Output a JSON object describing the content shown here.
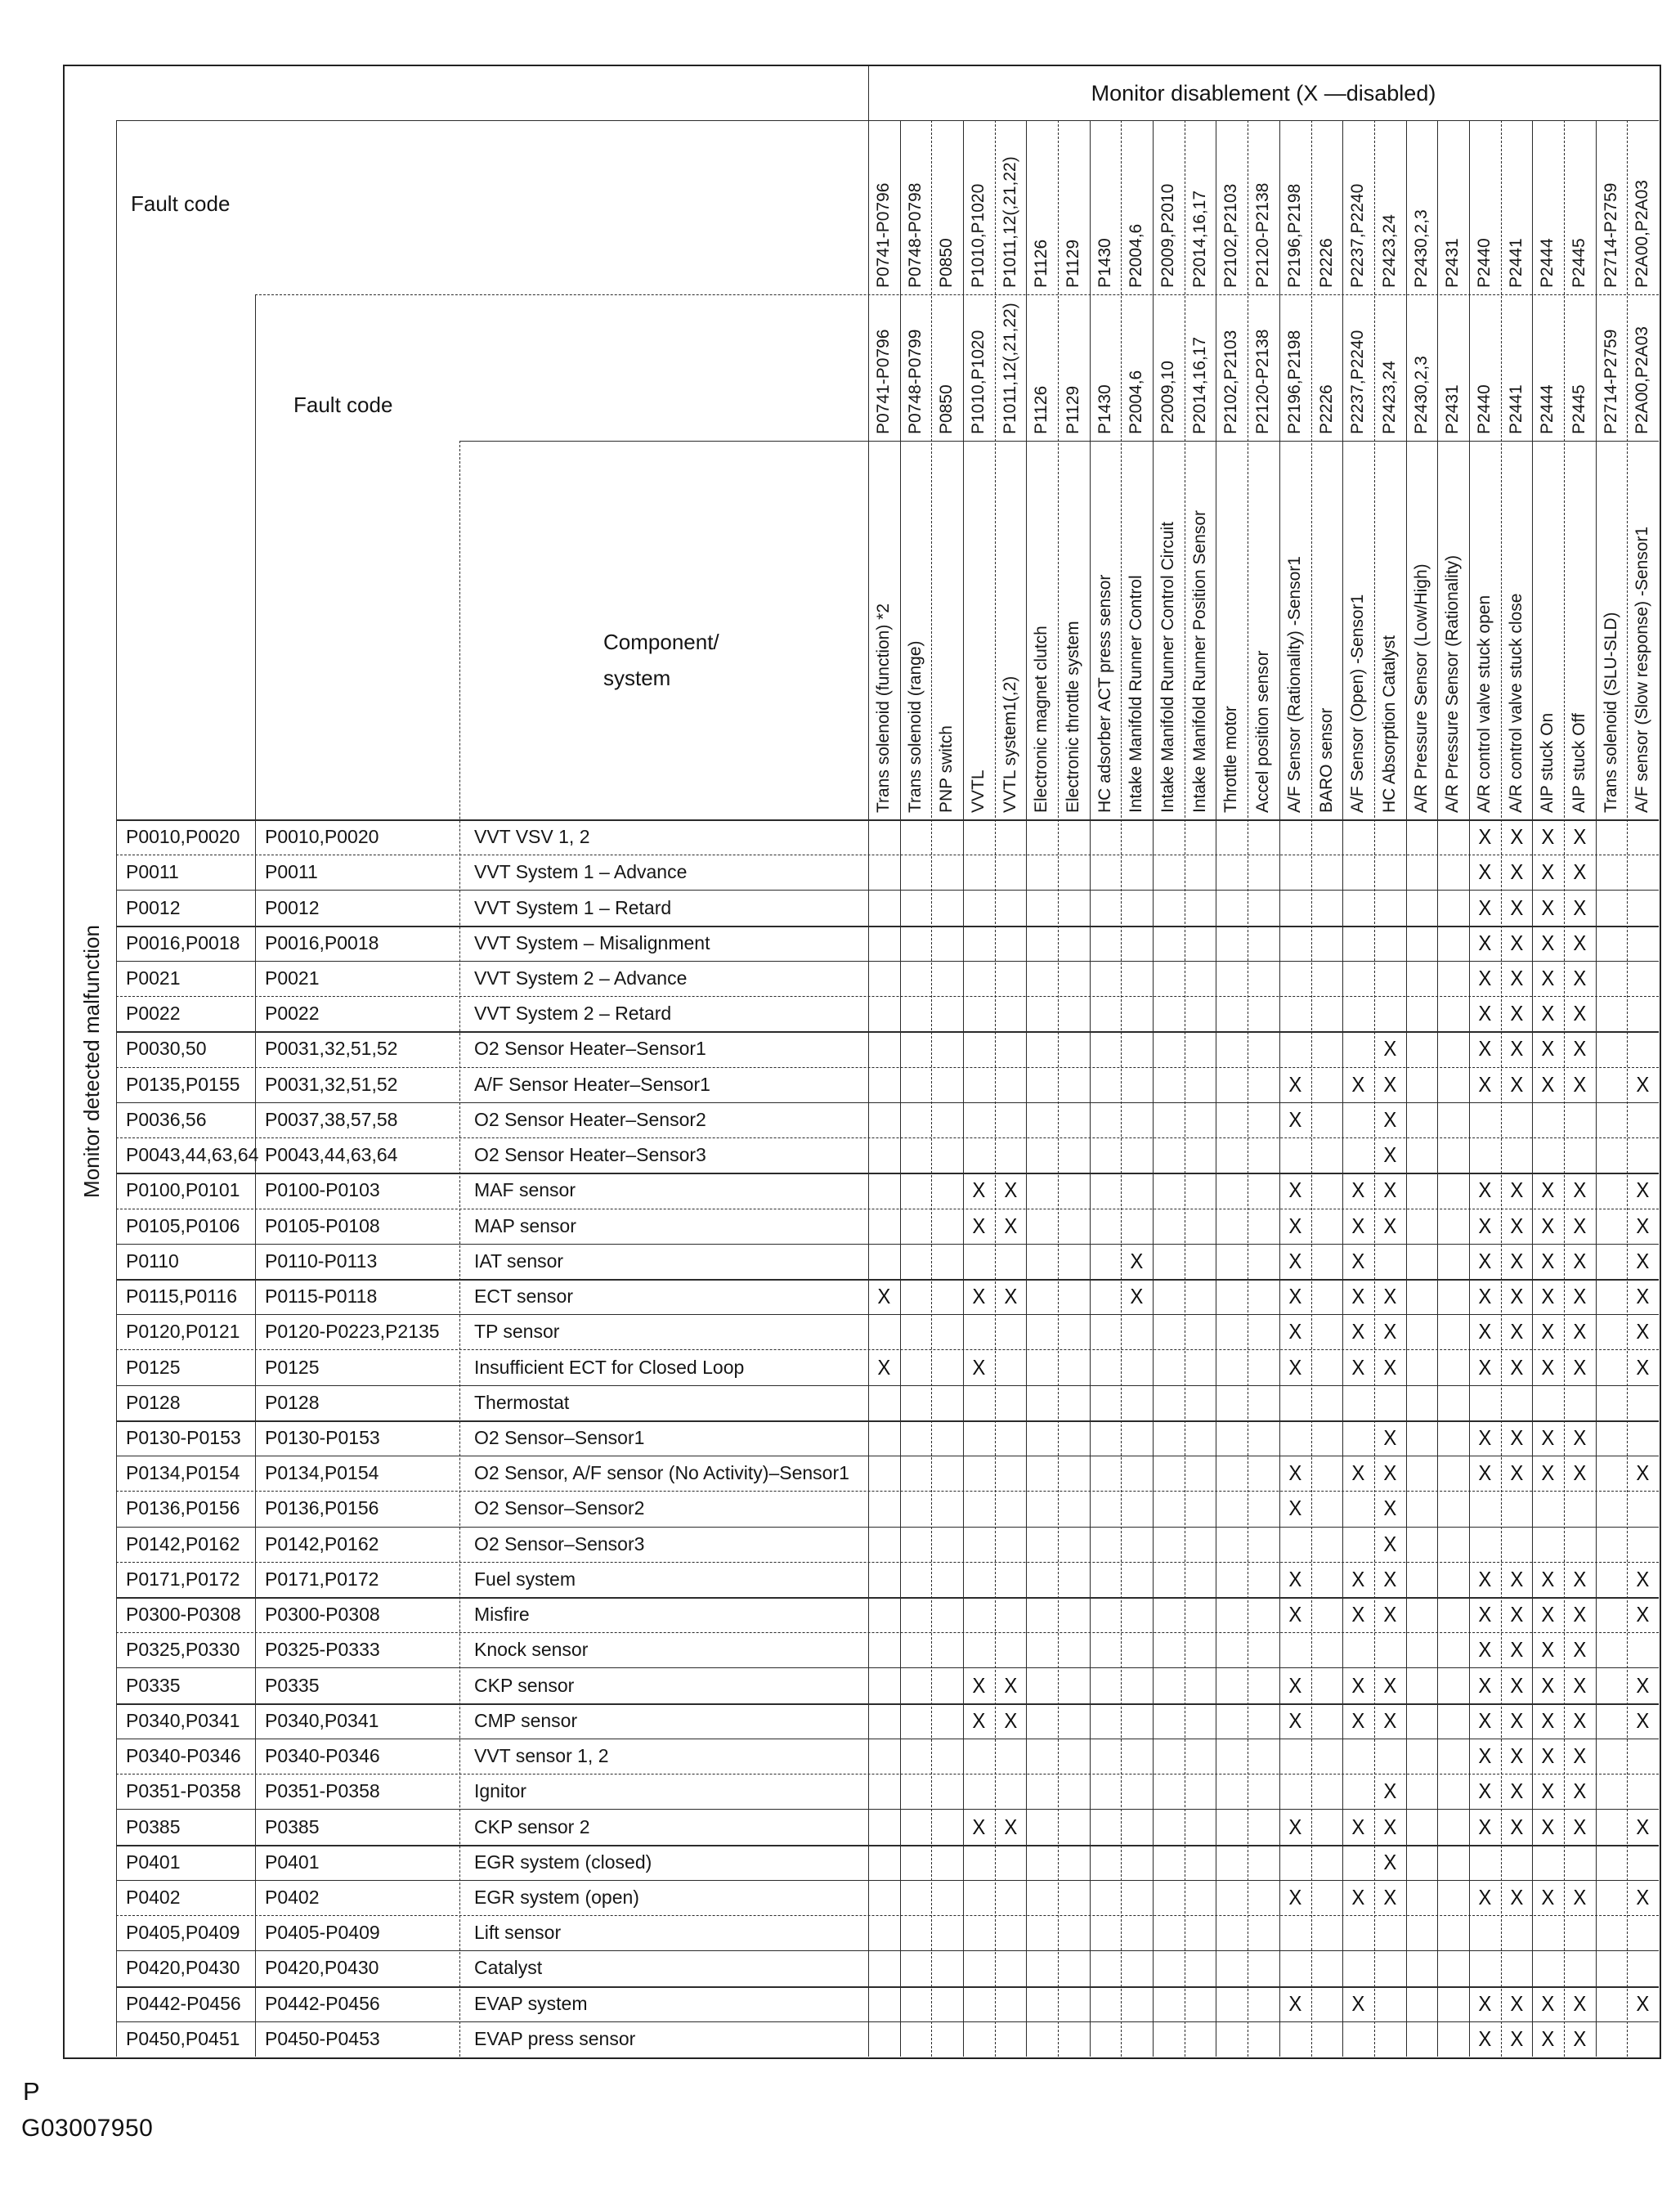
{
  "title": "Monitor disablement (X —disabled)",
  "mark": "X",
  "header": {
    "fault_code_1": "Fault code",
    "fault_code_2": "Fault code",
    "component": "Component/\nsystem",
    "row_axis": "Monitor detected malfunction"
  },
  "footer": {
    "page_letter": "P",
    "figure_id": "G03007950"
  },
  "columns": [
    {
      "top": "P0741-P0796",
      "mid": "P0741-P0796",
      "label": "Trans solenoid (function) *2"
    },
    {
      "top": "P0748-P0798",
      "mid": "P0748-P0799",
      "label": "Trans solenoid (range)"
    },
    {
      "top": "P0850",
      "mid": "P0850",
      "label": "PNP switch"
    },
    {
      "top": "P1010,P1020",
      "mid": "P1010,P1020",
      "label": "VVTL"
    },
    {
      "top": "P1011,12(,21,22)",
      "mid": "P1011,12(,21,22)",
      "label": "VVTL system1(,2)"
    },
    {
      "top": "P1126",
      "mid": "P1126",
      "label": "Electronic magnet clutch"
    },
    {
      "top": "P1129",
      "mid": "P1129",
      "label": "Electronic throttle system"
    },
    {
      "top": "P1430",
      "mid": "P1430",
      "label": "HC adsorber ACT press sensor"
    },
    {
      "top": "P2004,6",
      "mid": "P2004,6",
      "label": "Intake Manifold Runner Control"
    },
    {
      "top": "P2009,P2010",
      "mid": "P2009,10",
      "label": "Intake Manifold Runner Control Circuit"
    },
    {
      "top": "P2014,16,17",
      "mid": "P2014,16,17",
      "label": "Intake Manifold Runner Position Sensor"
    },
    {
      "top": "P2102,P2103",
      "mid": "P2102,P2103",
      "label": "Throttle motor"
    },
    {
      "top": "P2120-P2138",
      "mid": "P2120-P2138",
      "label": "Accel position sensor"
    },
    {
      "top": "P2196,P2198",
      "mid": "P2196,P2198",
      "label": "A/F Sensor (Rationality) -Sensor1"
    },
    {
      "top": "P2226",
      "mid": "P2226",
      "label": "BARO sensor"
    },
    {
      "top": "P2237,P2240",
      "mid": "P2237,P2240",
      "label": "A/F Sensor (Open) -Sensor1"
    },
    {
      "top": "P2423,24",
      "mid": "P2423,24",
      "label": "HC Absorption Catalyst"
    },
    {
      "top": "P2430,2,3",
      "mid": "P2430,2,3",
      "label": "A/R Pressure Sensor (Low/High)"
    },
    {
      "top": "P2431",
      "mid": "P2431",
      "label": "A/R Pressure Sensor (Rationality)"
    },
    {
      "top": "P2440",
      "mid": "P2440",
      "label": "A/R control valve stuck open"
    },
    {
      "top": "P2441",
      "mid": "P2441",
      "label": "A/R control valve stuck close"
    },
    {
      "top": "P2444",
      "mid": "P2444",
      "label": "AIP stuck On"
    },
    {
      "top": "P2445",
      "mid": "P2445",
      "label": "AIP stuck Off"
    },
    {
      "top": "P2714-P2759",
      "mid": "P2714-P2759",
      "label": "Trans solenoid (SLU-SLD)"
    },
    {
      "top": "P2A00,P2A03",
      "mid": "P2A00,P2A03",
      "label": "A/F sensor (Slow response) -Sensor1"
    }
  ],
  "rows": [
    {
      "f1": "P0010,P0020",
      "f2": "P0010,P0020",
      "comp": "VVT VSV 1, 2",
      "x_cols": [
        20,
        21,
        22,
        23
      ]
    },
    {
      "f1": "P0011",
      "f2": "P0011",
      "comp": "VVT System 1 – Advance",
      "x_cols": [
        20,
        21,
        22,
        23
      ]
    },
    {
      "f1": "P0012",
      "f2": "P0012",
      "comp": "VVT System 1 – Retard",
      "x_cols": [
        20,
        21,
        22,
        23
      ]
    },
    {
      "f1": "P0016,P0018",
      "f2": "P0016,P0018",
      "comp": "VVT System – Misalignment",
      "x_cols": [
        20,
        21,
        22,
        23
      ]
    },
    {
      "f1": "P0021",
      "f2": "P0021",
      "comp": "VVT System 2 – Advance",
      "x_cols": [
        20,
        21,
        22,
        23
      ]
    },
    {
      "f1": "P0022",
      "f2": "P0022",
      "comp": "VVT System 2 – Retard",
      "x_cols": [
        20,
        21,
        22,
        23
      ]
    },
    {
      "f1": "P0030,50",
      "f2": "P0031,32,51,52",
      "comp": "O2 Sensor Heater–Sensor1",
      "x_cols": [
        17,
        20,
        21,
        22,
        23
      ]
    },
    {
      "f1": "P0135,P0155",
      "f2": "P0031,32,51,52",
      "comp": "A/F Sensor Heater–Sensor1",
      "x_cols": [
        14,
        16,
        17,
        20,
        21,
        22,
        23,
        25
      ]
    },
    {
      "f1": "P0036,56",
      "f2": "P0037,38,57,58",
      "comp": "O2 Sensor Heater–Sensor2",
      "x_cols": [
        14,
        17
      ]
    },
    {
      "f1": "P0043,44,63,64",
      "f2": "P0043,44,63,64",
      "comp": "O2 Sensor Heater–Sensor3",
      "x_cols": [
        17
      ]
    },
    {
      "f1": "P0100,P0101",
      "f2": "P0100-P0103",
      "comp": "MAF sensor",
      "x_cols": [
        4,
        5,
        14,
        16,
        17,
        20,
        21,
        22,
        23,
        25
      ]
    },
    {
      "f1": "P0105,P0106",
      "f2": "P0105-P0108",
      "comp": "MAP sensor",
      "x_cols": [
        4,
        5,
        14,
        16,
        17,
        20,
        21,
        22,
        23,
        25
      ]
    },
    {
      "f1": "P0110",
      "f2": "P0110-P0113",
      "comp": "IAT sensor",
      "x_cols": [
        9,
        14,
        16,
        20,
        21,
        22,
        23,
        25
      ]
    },
    {
      "f1": "P0115,P0116",
      "f2": "P0115-P0118",
      "comp": "ECT sensor",
      "x_cols": [
        1,
        4,
        5,
        9,
        14,
        16,
        17,
        20,
        21,
        22,
        23,
        25
      ]
    },
    {
      "f1": "P0120,P0121",
      "f2": "P0120-P0223,P2135",
      "comp": "TP sensor",
      "x_cols": [
        14,
        16,
        17,
        20,
        21,
        22,
        23,
        25
      ]
    },
    {
      "f1": "P0125",
      "f2": "P0125",
      "comp": "Insufficient ECT for Closed Loop",
      "x_cols": [
        1,
        4,
        14,
        16,
        17,
        20,
        21,
        22,
        23,
        25
      ]
    },
    {
      "f1": "P0128",
      "f2": "P0128",
      "comp": "Thermostat",
      "x_cols": []
    },
    {
      "f1": "P0130-P0153",
      "f2": "P0130-P0153",
      "comp": "O2 Sensor–Sensor1",
      "x_cols": [
        17,
        20,
        21,
        22,
        23
      ]
    },
    {
      "f1": "P0134,P0154",
      "f2": "P0134,P0154",
      "comp": "O2 Sensor, A/F sensor (No Activity)–Sensor1",
      "x_cols": [
        14,
        16,
        17,
        20,
        21,
        22,
        23,
        25
      ]
    },
    {
      "f1": "P0136,P0156",
      "f2": "P0136,P0156",
      "comp": "O2 Sensor–Sensor2",
      "x_cols": [
        14,
        17
      ]
    },
    {
      "f1": "P0142,P0162",
      "f2": "P0142,P0162",
      "comp": "O2 Sensor–Sensor3",
      "x_cols": [
        17
      ]
    },
    {
      "f1": "P0171,P0172",
      "f2": "P0171,P0172",
      "comp": "Fuel system",
      "x_cols": [
        14,
        16,
        17,
        20,
        21,
        22,
        23,
        25
      ]
    },
    {
      "f1": "P0300-P0308",
      "f2": "P0300-P0308",
      "comp": "Misfire",
      "x_cols": [
        14,
        16,
        17,
        20,
        21,
        22,
        23,
        25
      ]
    },
    {
      "f1": "P0325,P0330",
      "f2": "P0325-P0333",
      "comp": "Knock sensor",
      "x_cols": [
        20,
        21,
        22,
        23
      ]
    },
    {
      "f1": "P0335",
      "f2": "P0335",
      "comp": "CKP sensor",
      "x_cols": [
        4,
        5,
        14,
        16,
        17,
        20,
        21,
        22,
        23,
        25
      ]
    },
    {
      "f1": "P0340,P0341",
      "f2": "P0340,P0341",
      "comp": "CMP sensor",
      "x_cols": [
        4,
        5,
        14,
        16,
        17,
        20,
        21,
        22,
        23,
        25
      ]
    },
    {
      "f1": "P0340-P0346",
      "f2": "P0340-P0346",
      "comp": "VVT sensor 1, 2",
      "x_cols": [
        20,
        21,
        22,
        23
      ]
    },
    {
      "f1": "P0351-P0358",
      "f2": "P0351-P0358",
      "comp": "Ignitor",
      "x_cols": [
        17,
        20,
        21,
        22,
        23
      ]
    },
    {
      "f1": "P0385",
      "f2": "P0385",
      "comp": "CKP sensor 2",
      "x_cols": [
        4,
        5,
        14,
        16,
        17,
        20,
        21,
        22,
        23,
        25
      ]
    },
    {
      "f1": "P0401",
      "f2": "P0401",
      "comp": "EGR system (closed)",
      "x_cols": [
        17
      ]
    },
    {
      "f1": "P0402",
      "f2": "P0402",
      "comp": "EGR system (open)",
      "x_cols": [
        14,
        16,
        17,
        20,
        21,
        22,
        23,
        25
      ]
    },
    {
      "f1": "P0405,P0409",
      "f2": "P0405-P0409",
      "comp": "Lift sensor",
      "x_cols": []
    },
    {
      "f1": "P0420,P0430",
      "f2": "P0420,P0430",
      "comp": "Catalyst",
      "x_cols": []
    },
    {
      "f1": "P0442-P0456",
      "f2": "P0442-P0456",
      "comp": "EVAP system",
      "x_cols": [
        14,
        16,
        20,
        21,
        22,
        23,
        25
      ]
    },
    {
      "f1": "P0450,P0451",
      "f2": "P0450-P0453",
      "comp": "EVAP press sensor",
      "x_cols": [
        20,
        21,
        22,
        23
      ]
    }
  ]
}
